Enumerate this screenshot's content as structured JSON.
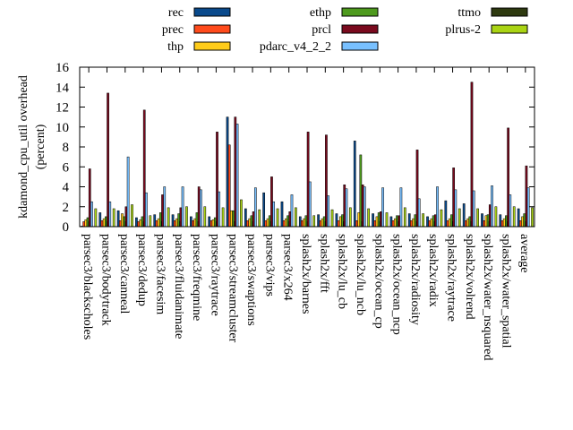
{
  "chart_data": {
    "type": "bar",
    "title": "",
    "xlabel": "",
    "ylabel": "kdamond_cpu_util overhead\n(percent)",
    "ylim": [
      0,
      16
    ],
    "yticks": [
      0,
      2,
      4,
      6,
      8,
      10,
      12,
      14,
      16
    ],
    "grid": false,
    "legend_position": "top",
    "categories": [
      "parsec3/blackscholes",
      "parsec3/bodytrack",
      "parsec3/canneal",
      "parsec3/dedup",
      "parsec3/facesim",
      "parsec3/fluidanimate",
      "parsec3/freqmine",
      "parsec3/raytrace",
      "parsec3/streamcluster",
      "parsec3/swaptions",
      "parsec3/vips",
      "parsec3/x264",
      "splash2x/barnes",
      "splash2x/fft",
      "splash2x/lu_cb",
      "splash2x/lu_ncb",
      "splash2x/ocean_cp",
      "splash2x/ocean_ncp",
      "splash2x/radiosity",
      "splash2x/radix",
      "splash2x/raytrace",
      "splash2x/volrend",
      "splash2x/water_nsquared",
      "splash2x/water_spatial",
      "average"
    ],
    "series": [
      {
        "name": "rec",
        "color": "#0a4a8c",
        "values": [
          0.05,
          1.4,
          1.6,
          0.9,
          1.2,
          1.2,
          1.0,
          1.0,
          11.0,
          1.8,
          3.4,
          2.5,
          1.0,
          1.2,
          1.3,
          8.6,
          1.3,
          1.0,
          1.3,
          1.0,
          2.6,
          2.3,
          1.3,
          1.2,
          1.8
        ]
      },
      {
        "name": "prec",
        "color": "#ff4b1c",
        "values": [
          0.5,
          0.6,
          0.6,
          0.5,
          0.6,
          0.6,
          0.6,
          0.6,
          8.2,
          0.6,
          0.6,
          0.6,
          0.6,
          0.6,
          0.6,
          0.6,
          0.6,
          0.6,
          0.6,
          0.6,
          0.6,
          0.6,
          0.6,
          0.6,
          0.6
        ]
      },
      {
        "name": "thp",
        "color": "#ffcc1a",
        "values": [
          0.7,
          0.8,
          1.3,
          0.7,
          0.8,
          0.8,
          0.8,
          0.7,
          1.6,
          0.8,
          0.8,
          0.8,
          0.8,
          0.8,
          1.0,
          1.4,
          1.0,
          0.8,
          0.8,
          0.8,
          0.8,
          0.8,
          1.1,
          0.8,
          1.0
        ]
      },
      {
        "name": "ethp",
        "color": "#4e9a1e",
        "values": [
          0.9,
          1.0,
          1.0,
          1.0,
          1.4,
          1.3,
          1.4,
          0.9,
          1.6,
          1.1,
          1.1,
          1.1,
          1.1,
          1.0,
          1.2,
          7.2,
          1.4,
          1.1,
          1.2,
          1.1,
          1.2,
          1.0,
          1.2,
          1.1,
          1.3
        ]
      },
      {
        "name": "prcl",
        "color": "#7a0a1e",
        "values": [
          5.8,
          13.4,
          2.0,
          11.7,
          3.2,
          1.9,
          4.0,
          9.5,
          11.0,
          1.5,
          5.0,
          1.5,
          9.5,
          9.2,
          4.2,
          4.2,
          1.5,
          1.1,
          7.7,
          1.2,
          5.9,
          14.5,
          2.2,
          9.9,
          6.1
        ]
      },
      {
        "name": "pdarc_v4_2_2",
        "color": "#78c0ff",
        "values": [
          2.5,
          2.5,
          7.0,
          3.4,
          4.0,
          4.0,
          3.7,
          3.5,
          10.3,
          3.9,
          2.5,
          3.2,
          4.5,
          3.1,
          3.8,
          4.0,
          3.9,
          3.9,
          2.8,
          4.0,
          3.7,
          3.6,
          4.1,
          3.2,
          3.9
        ]
      },
      {
        "name": "ttmo",
        "color": "#2e3a10",
        "values": [
          0.0,
          0.0,
          0.0,
          0.0,
          0.0,
          0.0,
          0.0,
          0.0,
          0.0,
          0.0,
          0.0,
          0.0,
          0.0,
          0.0,
          0.0,
          0.0,
          0.0,
          0.0,
          0.0,
          0.0,
          0.0,
          0.0,
          0.0,
          0.0,
          0.0
        ]
      },
      {
        "name": "plrus-2",
        "color": "#aad414",
        "values": [
          1.8,
          1.8,
          2.2,
          1.1,
          1.9,
          2.0,
          2.0,
          1.9,
          2.7,
          1.7,
          1.8,
          1.9,
          1.1,
          1.7,
          1.9,
          1.8,
          1.4,
          1.9,
          1.3,
          1.7,
          1.8,
          1.8,
          2.0,
          2.0,
          1.9
        ]
      }
    ]
  }
}
